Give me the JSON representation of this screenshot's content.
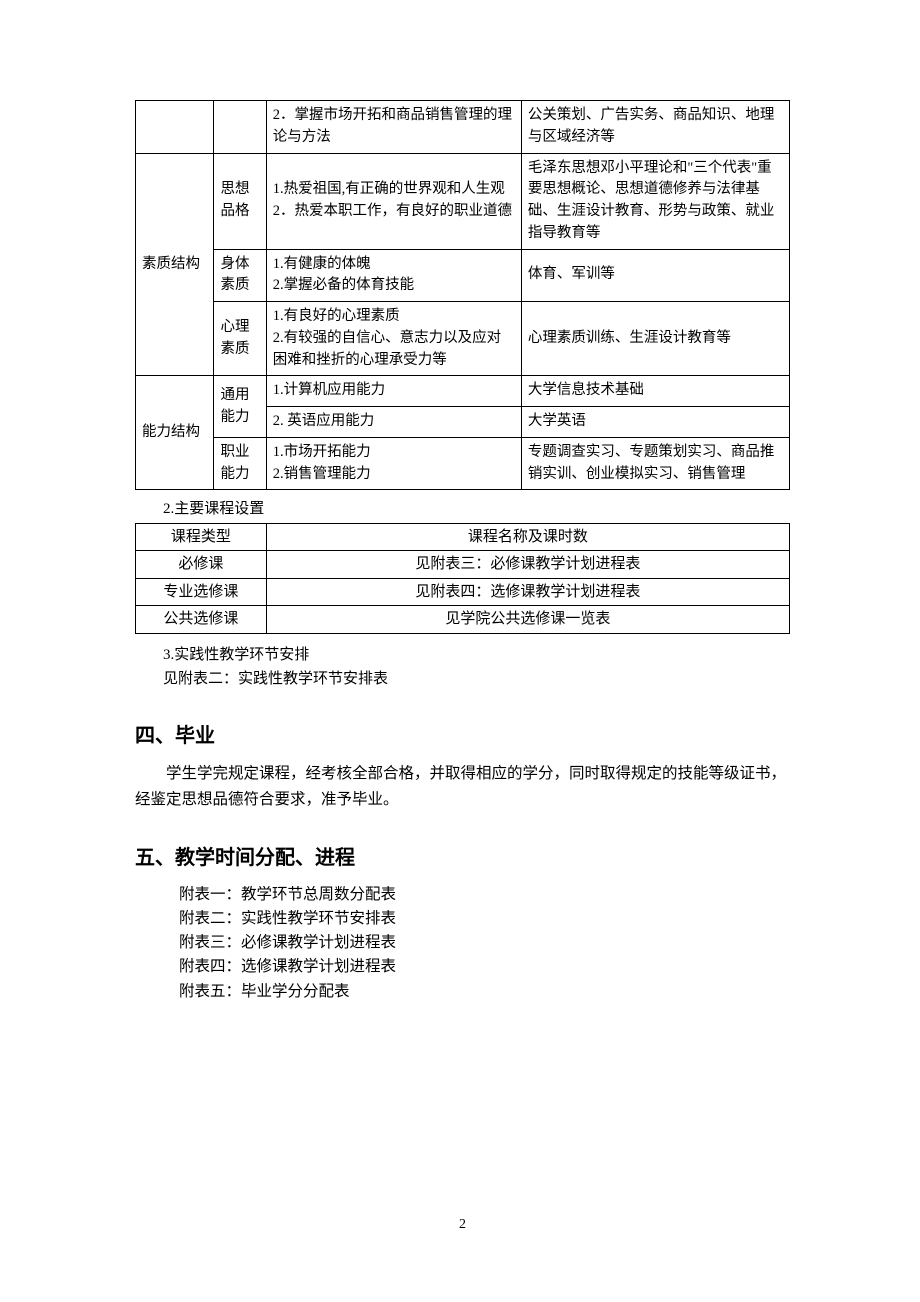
{
  "table1": {
    "row_partial": {
      "col3": "2．掌握市场开拓和商品销售管理的理论与方法",
      "col4": "公关策划、广告实务、商品知识、地理与区域经济等"
    },
    "group_quality": {
      "label": "素质结构",
      "rows": [
        {
          "sub": "思想品格",
          "req": "1.热爱祖国,有正确的世界观和人生观\n2．热爱本职工作，有良好的职业道德",
          "course": "毛泽东思想邓小平理论和\"三个代表\"重要思想概论、思想道德修养与法律基础、生涯设计教育、形势与政策、就业指导教育等"
        },
        {
          "sub": "身体素质",
          "req": "1.有健康的体魄\n2.掌握必备的体育技能",
          "course": "体育、军训等"
        },
        {
          "sub": "心理素质",
          "req": "1.有良好的心理素质\n2.有较强的自信心、意志力以及应对困难和挫折的心理承受力等",
          "course": "心理素质训练、生涯设计教育等"
        }
      ]
    },
    "group_ability": {
      "label": "能力结构",
      "rows": [
        {
          "sub": "通用能力",
          "req": "1.计算机应用能力",
          "course": "大学信息技术基础"
        },
        {
          "sub_continued": true,
          "req": "2. 英语应用能力",
          "course": "大学英语"
        },
        {
          "sub": "职业能力",
          "req": "1.市场开拓能力\n2.销售管理能力",
          "course": "专题调查实习、专题策划实习、商品推销实训、创业模拟实习、销售管理"
        }
      ]
    }
  },
  "section2_label": "2.主要课程设置",
  "table2": {
    "header": {
      "colA": "课程类型",
      "colB": "课程名称及课时数"
    },
    "rows": [
      {
        "a": "必修课",
        "b": "见附表三：必修课教学计划进程表"
      },
      {
        "a": "专业选修课",
        "b": "见附表四：选修课教学计划进程表"
      },
      {
        "a": "公共选修课",
        "b": "见学院公共选修课一览表"
      }
    ]
  },
  "section3": {
    "l1": "3.实践性教学环节安排",
    "l2": "见附表二：实践性教学环节安排表"
  },
  "h4": "四、毕业",
  "p4": "学生学完规定课程，经考核全部合格，并取得相应的学分，同时取得规定的技能等级证书，经鉴定思想品德符合要求，准予毕业。",
  "h5": "五、教学时间分配、进程",
  "appendix": [
    "附表一：教学环节总周数分配表",
    "附表二：实践性教学环节安排表",
    "附表三：必修课教学计划进程表",
    "附表四：选修课教学计划进程表",
    "附表五：毕业学分分配表"
  ],
  "page_num": "2"
}
